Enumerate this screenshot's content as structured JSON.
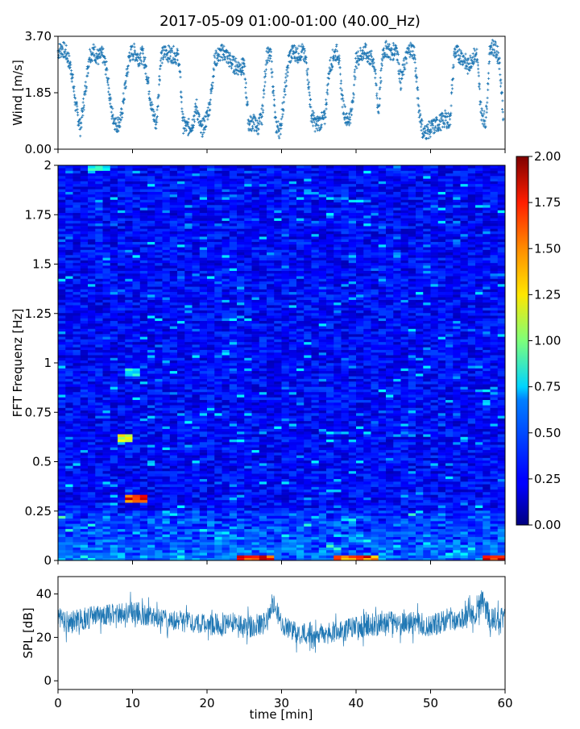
{
  "title": "2017-05-09 01:00-01:00 (40.00_Hz)",
  "colors": {
    "series": "#1f77b4",
    "axis": "#000000",
    "background": "#ffffff"
  },
  "chart_data": [
    {
      "id": "wind",
      "type": "scatter",
      "title": "",
      "xlabel": "",
      "ylabel": "Wind [m/s]",
      "xlim": [
        0,
        60
      ],
      "ylim": [
        0,
        3.7
      ],
      "x_ticks": [
        0,
        10,
        20,
        30,
        40,
        50,
        60
      ],
      "y_ticks": [
        "0.00",
        "1.85",
        "3.70"
      ],
      "y_tick_values": [
        0,
        1.85,
        3.7
      ],
      "marker": "+",
      "series": [
        {
          "x": [
            0,
            0.6,
            1.2,
            1.8,
            2.4,
            3.0,
            3.6,
            4.2,
            4.8,
            5.4,
            6.0,
            6.6,
            7.2,
            7.8,
            8.4,
            9.0,
            9.6,
            10.2,
            10.8,
            11.4,
            12.0,
            12.6,
            13.2,
            13.8,
            14.4,
            15.0,
            15.6,
            16.2,
            16.8,
            17.4,
            18.0,
            18.6,
            19.2,
            19.8,
            20.4,
            21.0,
            21.6,
            22.2,
            22.8,
            23.4,
            24.0,
            24.6,
            25.0,
            25.6,
            26.2,
            26.8,
            27.4,
            28.0,
            28.6,
            29.2,
            29.8,
            30.4,
            31.0,
            31.6,
            32.2,
            32.8,
            33.4,
            34.0,
            34.6,
            35.2,
            35.8,
            36.4,
            37.0,
            37.6,
            38.2,
            38.8,
            39.4,
            40.0,
            40.6,
            41.2,
            41.8,
            42.4,
            43.0,
            43.6,
            44.2,
            44.8,
            45.4,
            46.0,
            46.6,
            47.2,
            47.8,
            48.4,
            49.0,
            49.6,
            50.2,
            50.8,
            51.4,
            52.0,
            52.6,
            53.2,
            53.8,
            54.4,
            55.0,
            55.6,
            56.2,
            56.8,
            57.4,
            58.0,
            58.6,
            59.2,
            59.8
          ],
          "y": [
            3.2,
            3.3,
            3.1,
            2.6,
            1.4,
            0.7,
            1.8,
            3.1,
            3.2,
            3.0,
            3.1,
            2.5,
            1.2,
            0.8,
            0.9,
            2.0,
            3.1,
            3.2,
            3.0,
            3.1,
            2.4,
            1.3,
            0.8,
            3.0,
            3.2,
            3.1,
            3.1,
            3.0,
            0.8,
            0.7,
            0.8,
            1.4,
            0.6,
            0.9,
            1.5,
            2.9,
            3.1,
            3.2,
            3.0,
            2.8,
            2.7,
            2.7,
            2.7,
            0.8,
            0.9,
            0.7,
            1.1,
            3.1,
            3.0,
            0.8,
            0.6,
            1.8,
            3.0,
            3.2,
            3.1,
            3.2,
            2.8,
            1.1,
            0.8,
            0.9,
            1.0,
            2.6,
            3.1,
            3.2,
            1.5,
            0.9,
            1.2,
            2.9,
            3.1,
            3.2,
            3.0,
            2.9,
            1.2,
            3.2,
            3.3,
            3.1,
            3.4,
            2.2,
            2.9,
            3.3,
            3.2,
            1.4,
            0.5,
            0.6,
            0.7,
            0.8,
            0.9,
            1.0,
            0.9,
            3.2,
            3.1,
            3.0,
            2.7,
            3.0,
            3.1,
            1.2,
            0.9,
            3.4,
            3.3,
            3.0,
            1.0
          ]
        }
      ]
    },
    {
      "id": "spectrogram",
      "type": "heatmap",
      "title": "",
      "xlabel": "",
      "ylabel": "FFT Frequenz [Hz]",
      "xlim": [
        0,
        60
      ],
      "ylim": [
        0,
        2
      ],
      "y_ticks": [
        "0",
        "0.25",
        "0.5",
        "0.75",
        "1",
        "1.25",
        "1.5",
        "1.75",
        "2"
      ],
      "y_tick_values": [
        0,
        0.25,
        0.5,
        0.75,
        1,
        1.25,
        1.5,
        1.75,
        2
      ],
      "colormap": "jet",
      "colorbar": {
        "range": [
          0,
          2
        ],
        "ticks": [
          "0.00",
          "0.25",
          "0.50",
          "0.75",
          "1.00",
          "1.25",
          "1.50",
          "1.75",
          "2.00"
        ],
        "tick_values": [
          0,
          0.25,
          0.5,
          0.75,
          1,
          1.25,
          1.5,
          1.75,
          2
        ]
      },
      "typical_level": 0.25,
      "hotspots": [
        {
          "t_start": 9,
          "t_end": 12,
          "f": 0.31,
          "value": 1.9
        },
        {
          "t_start": 24,
          "t_end": 29,
          "f": 0.01,
          "value": 1.9
        },
        {
          "t_start": 37,
          "t_end": 43,
          "f": 0.01,
          "value": 1.9
        },
        {
          "t_start": 57,
          "t_end": 60,
          "f": 0.01,
          "value": 1.9
        },
        {
          "t_start": 4,
          "t_end": 7,
          "f": 1.99,
          "value": 0.9
        },
        {
          "t_start": 9,
          "t_end": 11,
          "f": 0.95,
          "value": 0.9
        },
        {
          "t_start": 8,
          "t_end": 10,
          "f": 0.62,
          "value": 1.4
        }
      ]
    },
    {
      "id": "spl",
      "type": "line",
      "title": "",
      "xlabel": "time [min]",
      "ylabel": "SPL [dB]",
      "xlim": [
        0,
        60
      ],
      "ylim": [
        -4,
        48
      ],
      "x_ticks": [
        0,
        10,
        20,
        30,
        40,
        50,
        60
      ],
      "y_ticks": [
        0,
        20,
        40
      ],
      "series": [
        {
          "x": [
            0,
            2,
            4,
            6,
            8,
            10,
            12,
            14,
            16,
            18,
            20,
            22,
            24,
            26,
            28,
            29,
            30,
            32,
            34,
            36,
            38,
            40,
            42,
            44,
            46,
            48,
            50,
            52,
            54,
            56,
            57,
            58,
            60
          ],
          "y": [
            28,
            27,
            29,
            30,
            31,
            32,
            30,
            29,
            28,
            27,
            26,
            26,
            27,
            25,
            27,
            35,
            26,
            22,
            21,
            22,
            23,
            25,
            26,
            27,
            26,
            27,
            25,
            28,
            29,
            31,
            38,
            28,
            29
          ],
          "upper": [
            38,
            36,
            38,
            39,
            40,
            41,
            39,
            38,
            37,
            35,
            34,
            35,
            35,
            34,
            36,
            41,
            34,
            30,
            30,
            32,
            33,
            34,
            37,
            38,
            35,
            36,
            34,
            37,
            38,
            40,
            45,
            38,
            38
          ],
          "lower": [
            18,
            17,
            19,
            20,
            22,
            22,
            21,
            20,
            19,
            18,
            16,
            16,
            18,
            15,
            18,
            24,
            16,
            12,
            12,
            13,
            14,
            15,
            16,
            17,
            16,
            17,
            15,
            17,
            19,
            21,
            24,
            18,
            19
          ]
        }
      ]
    }
  ]
}
